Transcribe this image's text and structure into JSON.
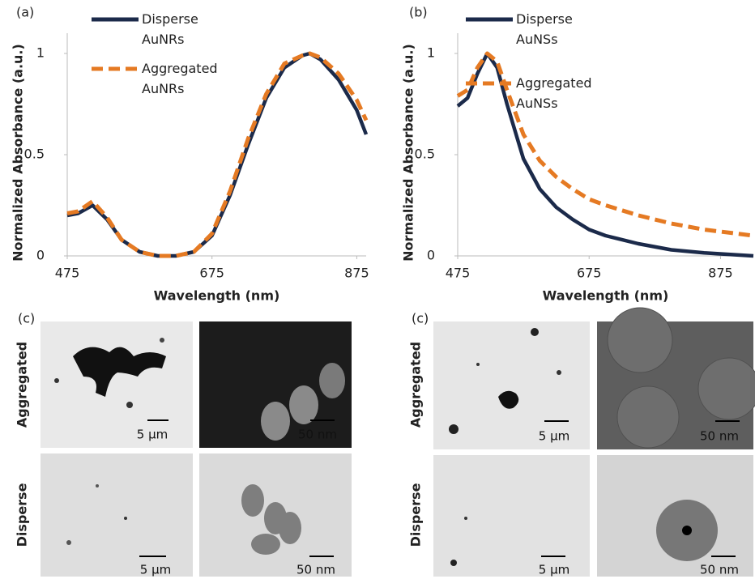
{
  "chart_data": [
    {
      "type": "line",
      "panel": "(a)",
      "xlabel": "Wavelength (nm)",
      "ylabel": "Normalized Absorbance (a.u.)",
      "x": [
        475,
        490,
        510,
        530,
        550,
        575,
        600,
        625,
        650,
        675,
        700,
        725,
        750,
        775,
        800,
        810,
        825,
        850,
        875,
        888
      ],
      "xlim": [
        475,
        888
      ],
      "xticks": [
        475,
        675,
        875
      ],
      "ylim": [
        0,
        1.1
      ],
      "yticks": [
        0,
        0.5,
        1
      ],
      "series": [
        {
          "name": "Disperse AuNRs",
          "color": "#1b2a4a",
          "dash": false,
          "values": [
            0.2,
            0.21,
            0.25,
            0.18,
            0.08,
            0.02,
            0,
            0,
            0.02,
            0.1,
            0.3,
            0.55,
            0.78,
            0.93,
            0.99,
            1.0,
            0.97,
            0.87,
            0.72,
            0.6
          ]
        },
        {
          "name": "Aggregated AuNRs",
          "color": "#e57a23",
          "dash": true,
          "values": [
            0.21,
            0.22,
            0.27,
            0.19,
            0.08,
            0.02,
            0,
            0,
            0.02,
            0.11,
            0.32,
            0.58,
            0.8,
            0.95,
            0.99,
            1.0,
            0.98,
            0.9,
            0.77,
            0.67
          ]
        }
      ]
    },
    {
      "type": "line",
      "panel": "(b)",
      "xlabel": "Wavelength (nm)",
      "ylabel": "Normalized Absorbance (a.u.)",
      "x": [
        475,
        490,
        505,
        520,
        535,
        550,
        575,
        600,
        625,
        650,
        675,
        700,
        750,
        800,
        850,
        875,
        925
      ],
      "xlim": [
        475,
        925
      ],
      "xticks": [
        475,
        675,
        875
      ],
      "ylim": [
        0,
        1.1
      ],
      "yticks": [
        0,
        0.5,
        1
      ],
      "series": [
        {
          "name": "Disperse AuNSs",
          "color": "#1b2a4a",
          "dash": false,
          "values": [
            0.74,
            0.78,
            0.9,
            1.0,
            0.93,
            0.75,
            0.48,
            0.33,
            0.24,
            0.18,
            0.13,
            0.1,
            0.06,
            0.03,
            0.015,
            0.01,
            0.0
          ]
        },
        {
          "name": "Aggregated AuNSs",
          "color": "#e57a23",
          "dash": true,
          "values": [
            0.79,
            0.82,
            0.93,
            1.0,
            0.96,
            0.82,
            0.6,
            0.47,
            0.39,
            0.33,
            0.28,
            0.25,
            0.2,
            0.16,
            0.13,
            0.12,
            0.1
          ]
        }
      ]
    }
  ],
  "micrographs": [
    {
      "label": "(c)",
      "row_labels": [
        "Aggregated",
        "Disperse"
      ],
      "scale_bars": [
        [
          "5 µm",
          "50 nm"
        ],
        [
          "5 µm",
          "50 nm"
        ]
      ]
    },
    {
      "label": "(c)",
      "row_labels": [
        "Aggregated",
        "Disperse"
      ],
      "scale_bars": [
        [
          "5 µm",
          "50 nm"
        ],
        [
          "5 µm",
          "50 nm"
        ]
      ]
    }
  ]
}
